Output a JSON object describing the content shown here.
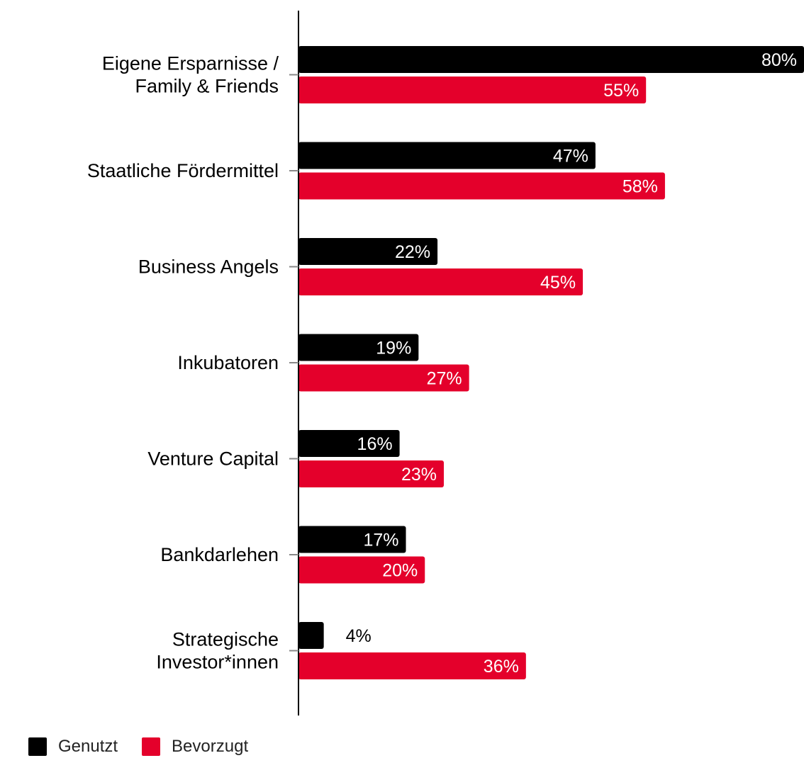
{
  "chart_data": {
    "type": "bar",
    "orientation": "horizontal",
    "categories": [
      [
        "Eigene Ersparnisse /",
        "Family & Friends"
      ],
      [
        "Staatliche Fördermittel"
      ],
      [
        "Business Angels"
      ],
      [
        "Inkubatoren"
      ],
      [
        "Venture Capital"
      ],
      [
        "Bankdarlehen"
      ],
      [
        "Strategische",
        "Investor*innen"
      ]
    ],
    "series": [
      {
        "name": "Genutzt",
        "color": "#000000",
        "values": [
          80,
          47,
          22,
          19,
          16,
          17,
          4
        ]
      },
      {
        "name": "Bevorzugt",
        "color": "#e4002b",
        "values": [
          55,
          58,
          45,
          27,
          23,
          20,
          36
        ]
      }
    ],
    "value_suffix": "%",
    "xlim": [
      0,
      80
    ],
    "grid": false,
    "legend_position": "bottom-left"
  }
}
